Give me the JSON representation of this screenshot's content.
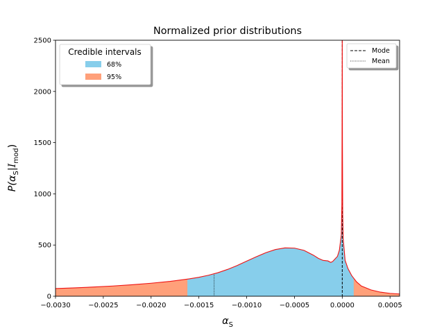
{
  "chart_data": {
    "type": "area",
    "title": "Normalized prior distributions",
    "xlabel_base": "α",
    "xlabel_sub": "S",
    "ylabel_prefix": "P(α",
    "ylabel_sub1": "S",
    "ylabel_mid": "|",
    "ylabel_script": "I",
    "ylabel_sub2": "mod",
    "ylabel_suffix": ")",
    "xlim": [
      -0.003,
      0.0006
    ],
    "ylim": [
      0,
      2500
    ],
    "xticks": [
      {
        "value": -0.003,
        "label": "−0.0030"
      },
      {
        "value": -0.0025,
        "label": "−0.0025"
      },
      {
        "value": -0.002,
        "label": "−0.0020"
      },
      {
        "value": -0.0015,
        "label": "−0.0015"
      },
      {
        "value": -0.001,
        "label": "−0.0010"
      },
      {
        "value": -0.0005,
        "label": "−0.0005"
      },
      {
        "value": 0.0,
        "label": "0.0000"
      },
      {
        "value": 0.0005,
        "label": "0.0005"
      }
    ],
    "yticks": [
      {
        "value": 0,
        "label": "0"
      },
      {
        "value": 500,
        "label": "500"
      },
      {
        "value": 1000,
        "label": "1000"
      },
      {
        "value": 1500,
        "label": "1500"
      },
      {
        "value": 2000,
        "label": "2000"
      },
      {
        "value": 2500,
        "label": "2500"
      }
    ],
    "curve": {
      "color": "#ee1111",
      "points": [
        [
          -0.003,
          75
        ],
        [
          -0.0028,
          82
        ],
        [
          -0.0026,
          90
        ],
        [
          -0.0024,
          100
        ],
        [
          -0.0022,
          112
        ],
        [
          -0.002,
          127
        ],
        [
          -0.0018,
          145
        ],
        [
          -0.0016,
          170
        ],
        [
          -0.0015,
          185
        ],
        [
          -0.0014,
          205
        ],
        [
          -0.0013,
          230
        ],
        [
          -0.0012,
          262
        ],
        [
          -0.0011,
          300
        ],
        [
          -0.001,
          343
        ],
        [
          -0.0009,
          385
        ],
        [
          -0.0008,
          425
        ],
        [
          -0.0007,
          456
        ],
        [
          -0.0006,
          472
        ],
        [
          -0.0005,
          470
        ],
        [
          -0.0004,
          448
        ],
        [
          -0.0003,
          400
        ],
        [
          -0.00025,
          370
        ],
        [
          -0.0002,
          350
        ],
        [
          -0.00015,
          345
        ],
        [
          -0.00012,
          330
        ],
        [
          -0.0001,
          340
        ],
        [
          -8e-05,
          360
        ],
        [
          -5e-05,
          390
        ],
        [
          -3e-05,
          450
        ],
        [
          -1e-05,
          600
        ],
        [
          -4e-06,
          900
        ],
        [
          -2e-06,
          1600
        ],
        [
          0.0,
          2600
        ],
        [
          2e-06,
          1500
        ],
        [
          5e-06,
          800
        ],
        [
          1e-05,
          560
        ],
        [
          3e-05,
          350
        ],
        [
          6e-05,
          270
        ],
        [
          0.0001,
          200
        ],
        [
          0.00015,
          140
        ],
        [
          0.0002,
          100
        ],
        [
          0.0003,
          62
        ],
        [
          0.0004,
          40
        ],
        [
          0.0005,
          28
        ],
        [
          0.0006,
          22
        ]
      ]
    },
    "credible_intervals": [
      {
        "label": "68%",
        "color": "#87ceeb",
        "from": -0.00162,
        "to": 0.00012
      },
      {
        "label": "95%",
        "color": "#ffa07a",
        "from": -0.003,
        "to": 0.0006
      }
    ],
    "mode": {
      "label": "Mode",
      "x": 0.0,
      "color": "#000000"
    },
    "mean": {
      "label": "Mean",
      "x": -0.00134,
      "color": "#000000"
    },
    "legend_left": {
      "title": "Credible intervals",
      "placement": "top-left"
    },
    "legend_right": {
      "placement": "top-right"
    }
  }
}
